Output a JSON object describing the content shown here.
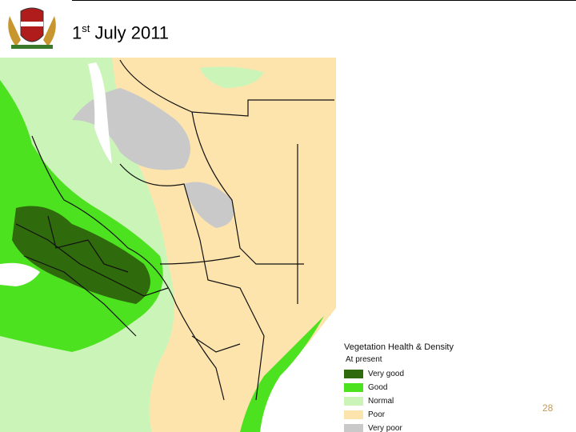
{
  "title": {
    "number": "1",
    "suffix": "st",
    "text": "July 2011"
  },
  "legend": {
    "title": "Vegetation Health & Density",
    "subtitle": "At present",
    "items": [
      {
        "label": "Very good",
        "color": "#2f6b0c"
      },
      {
        "label": "Good",
        "color": "#4de21f"
      },
      {
        "label": "Normal",
        "color": "#cbf5b8"
      },
      {
        "label": "Poor",
        "color": "#fde4ad"
      },
      {
        "label": "Very poor",
        "color": "#c9c9c9"
      }
    ]
  },
  "page_number": "28"
}
